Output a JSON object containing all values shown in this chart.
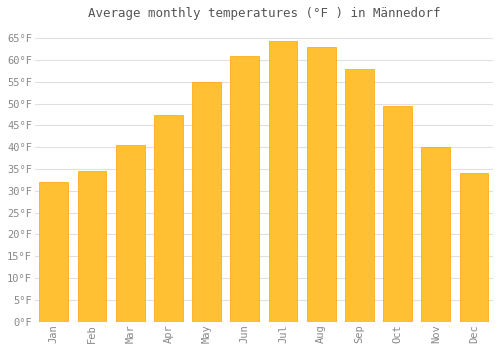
{
  "title": "Average monthly temperatures (°F ) in Männedorf",
  "months": [
    "Jan",
    "Feb",
    "Mar",
    "Apr",
    "May",
    "Jun",
    "Jul",
    "Aug",
    "Sep",
    "Oct",
    "Nov",
    "Dec"
  ],
  "values": [
    32,
    34.5,
    40.5,
    47.5,
    55,
    61,
    64.5,
    63,
    58,
    49.5,
    40,
    34
  ],
  "bar_color_face": "#FFC033",
  "bar_color_edge": "#FFA500",
  "background_color": "#FFFFFF",
  "grid_color": "#E0E0E0",
  "ylim": [
    0,
    68
  ],
  "yticks": [
    0,
    5,
    10,
    15,
    20,
    25,
    30,
    35,
    40,
    45,
    50,
    55,
    60,
    65
  ],
  "title_fontsize": 9,
  "tick_fontsize": 7.5,
  "font_color": "#888888",
  "title_color": "#555555"
}
